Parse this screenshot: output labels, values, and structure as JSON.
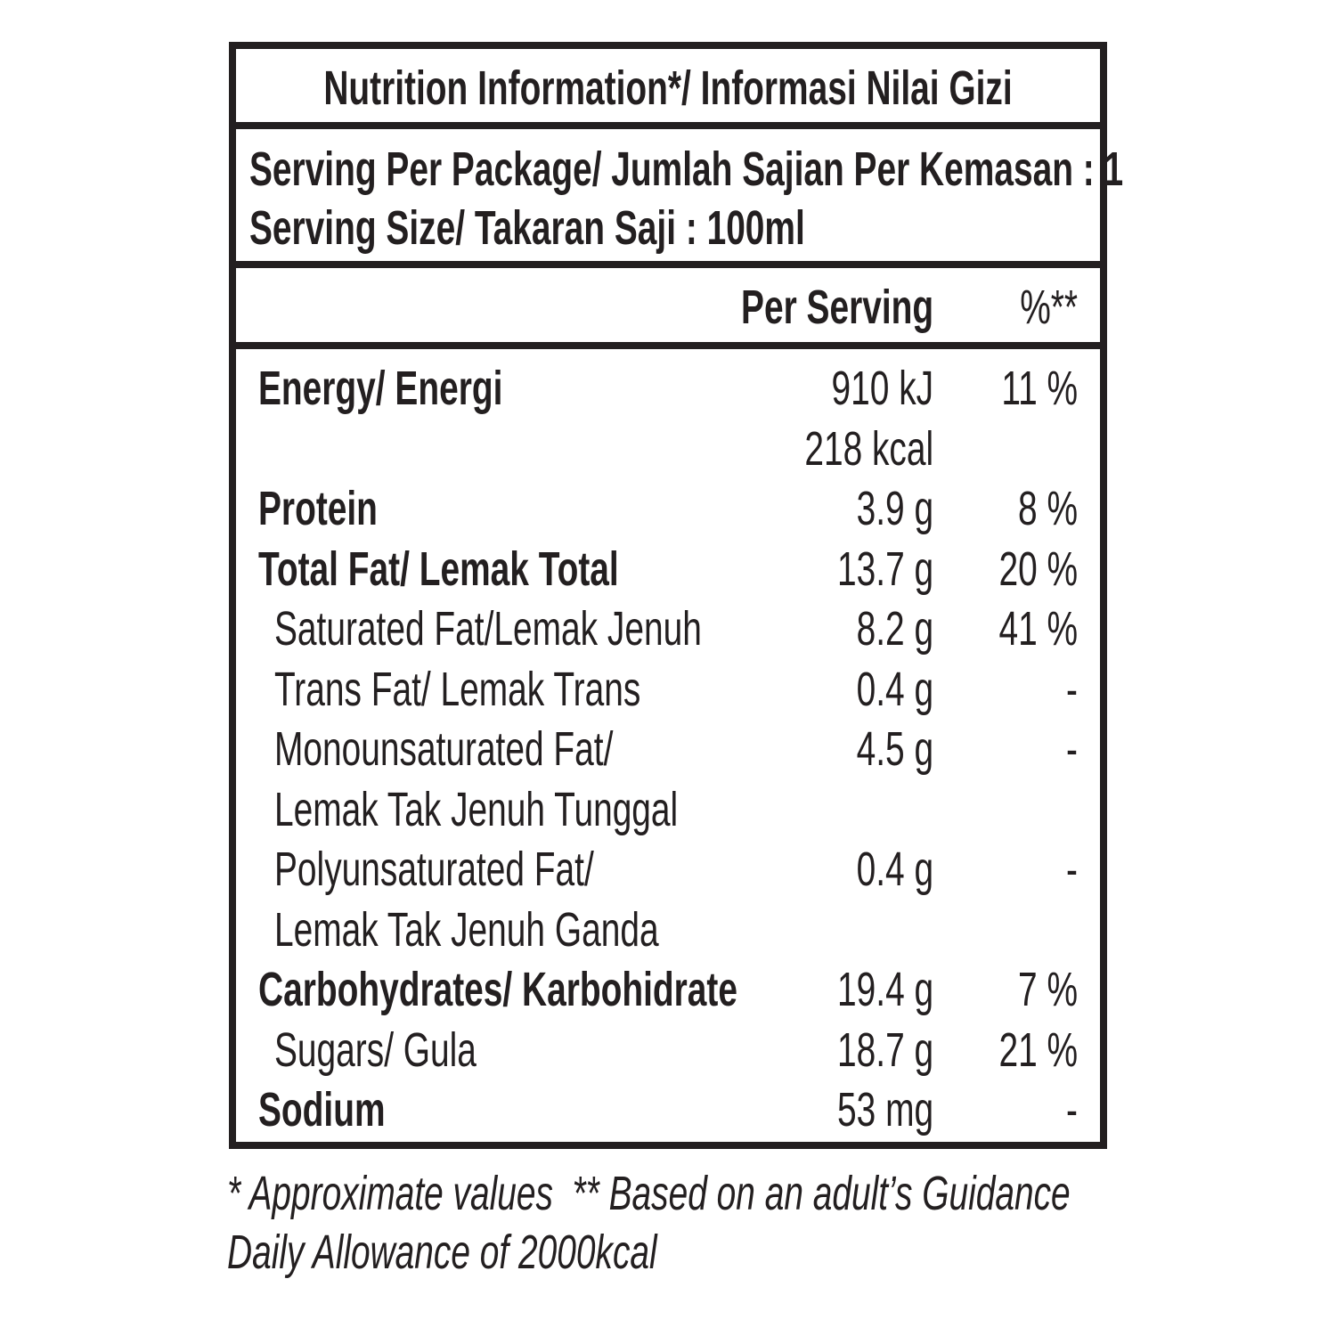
{
  "header": {
    "title": "Nutrition Information*/ Informasi Nilai Gizi"
  },
  "serving": [
    "Serving Per Package/ Jumlah Sajian Per Kemasan : 1",
    "Serving Size/ Takaran Saji : 100ml"
  ],
  "columns": {
    "amount": "Per Serving",
    "dv": "%**"
  },
  "table": {
    "rows": [
      {
        "name": [
          "Energy/ Energi"
        ],
        "amount": [
          "910 kJ",
          "218 kcal"
        ],
        "dv": "11 %",
        "bold": true
      },
      {
        "name": [
          "Protein"
        ],
        "amount": [
          "3.9 g"
        ],
        "dv": "8 %",
        "bold": true
      },
      {
        "name": [
          "Total Fat/ Lemak Total"
        ],
        "amount": [
          "13.7 g"
        ],
        "dv": "20 %",
        "bold": true
      },
      {
        "name": [
          "Saturated Fat/Lemak Jenuh"
        ],
        "amount": [
          "8.2 g"
        ],
        "dv": "41 %",
        "bold": false
      },
      {
        "name": [
          "Trans Fat/ Lemak Trans"
        ],
        "amount": [
          "0.4 g"
        ],
        "dv": "-",
        "bold": false
      },
      {
        "name": [
          "Monounsaturated Fat/",
          "Lemak Tak Jenuh Tunggal"
        ],
        "amount": [
          "4.5 g"
        ],
        "dv": "-",
        "bold": false
      },
      {
        "name": [
          "Polyunsaturated Fat/",
          "Lemak Tak Jenuh Ganda"
        ],
        "amount": [
          "0.4 g"
        ],
        "dv": "-",
        "bold": false
      },
      {
        "name": [
          "Carbohydrates/ Karbohidrate"
        ],
        "amount": [
          "19.4 g"
        ],
        "dv": "7 %",
        "bold": true
      },
      {
        "name": [
          "Sugars/ Gula"
        ],
        "amount": [
          "18.7 g"
        ],
        "dv": "21 %",
        "bold": false
      },
      {
        "name": [
          "Sodium"
        ],
        "amount": [
          "53 mg"
        ],
        "dv": "-",
        "bold": true
      }
    ]
  },
  "footnote": [
    "* Approximate values  ** Based on an adult’s Guidance",
    "Daily Allowance of 2000kcal"
  ]
}
